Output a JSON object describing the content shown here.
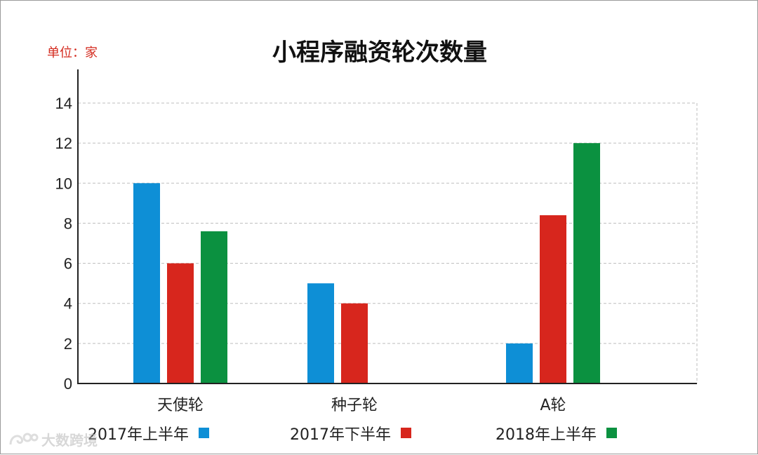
{
  "unit_label": "单位：家",
  "chart_data": {
    "type": "bar",
    "title": "小程序融资轮次数量",
    "categories": [
      "天使轮",
      "种子轮",
      "A轮"
    ],
    "series": [
      {
        "name": "2017年上半年",
        "color": "#0e8fd6",
        "values": [
          10,
          5,
          2
        ]
      },
      {
        "name": "2017年下半年",
        "color": "#d7261d",
        "values": [
          6,
          4,
          8.4
        ]
      },
      {
        "name": "2018年上半年",
        "color": "#0b9140",
        "values": [
          7.6,
          null,
          12
        ]
      }
    ],
    "ylim": [
      0,
      14
    ],
    "yticks": [
      0,
      2,
      4,
      6,
      8,
      10,
      12,
      14
    ],
    "grid": true,
    "legend_position": "bottom"
  },
  "watermark": {
    "text": "大数跨境",
    "icon": "logo-swirl-icon"
  }
}
